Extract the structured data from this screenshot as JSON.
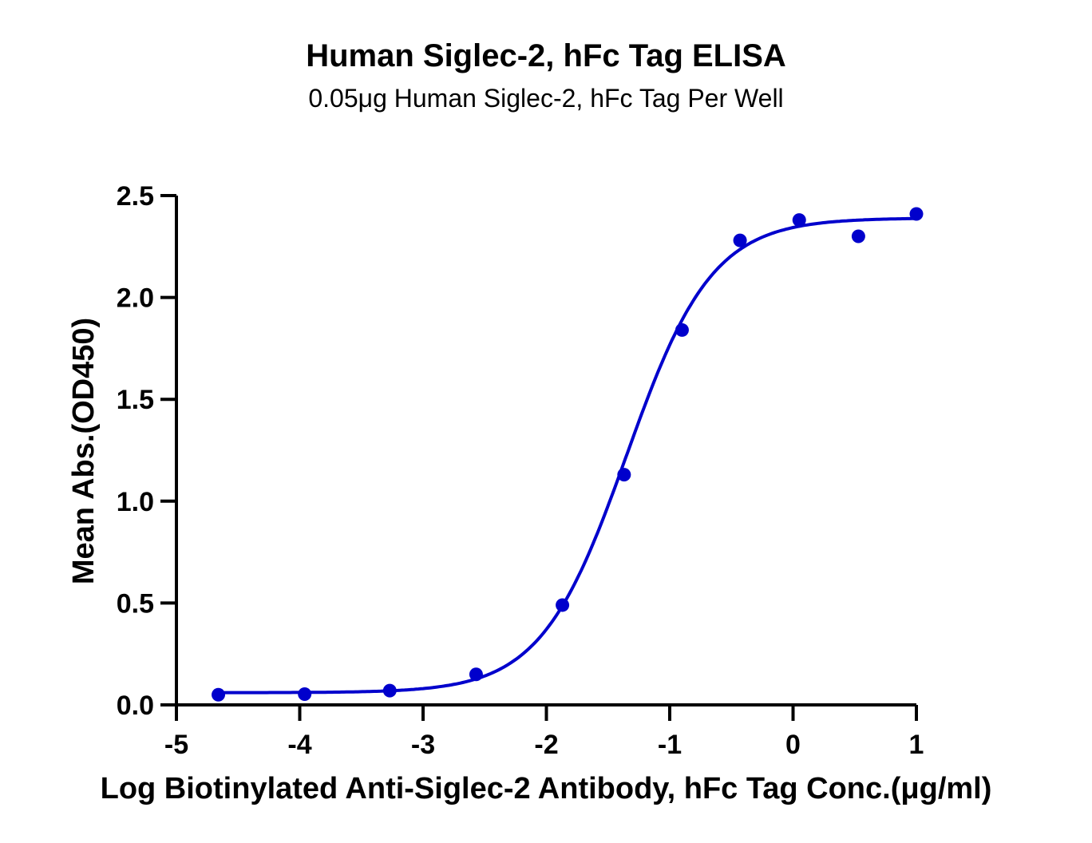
{
  "chart_data": {
    "type": "scatter",
    "title": "Human Siglec-2, hFc Tag ELISA",
    "subtitle": "0.05μg Human Siglec-2, hFc Tag Per Well",
    "xlabel": "Log Biotinylated Anti-Siglec-2 Antibody, hFc Tag Conc.(μg/ml)",
    "ylabel": "Mean Abs.(OD450)",
    "xlim": [
      -5,
      1
    ],
    "ylim": [
      0,
      2.5
    ],
    "x_ticks": [
      -5,
      -4,
      -3,
      -2,
      -1,
      0,
      1
    ],
    "x_tick_labels": [
      "-5",
      "-4",
      "-3",
      "-2",
      "-1",
      "0",
      "1"
    ],
    "y_ticks": [
      0,
      0.5,
      1,
      1.5,
      2,
      2.5
    ],
    "y_tick_labels": [
      "0.0",
      "0.5",
      "1.0",
      "1.5",
      "2.0",
      "2.5"
    ],
    "grid": false,
    "legend": "none",
    "series": [
      {
        "x": [
          -4.66,
          -3.96,
          -3.27,
          -2.57,
          -1.87,
          -1.37,
          -0.9,
          -0.43,
          0.05,
          0.53,
          1.0
        ],
        "y": [
          0.05,
          0.053,
          0.07,
          0.15,
          0.49,
          1.13,
          1.84,
          2.28,
          2.38,
          2.3,
          2.41
        ],
        "color": "#0000cc",
        "fit": {
          "model": "four-parameter logistic",
          "bottom": 0.06,
          "top": 2.39,
          "log_ec50": -1.35,
          "hill_slope": 1.25
        }
      }
    ]
  }
}
